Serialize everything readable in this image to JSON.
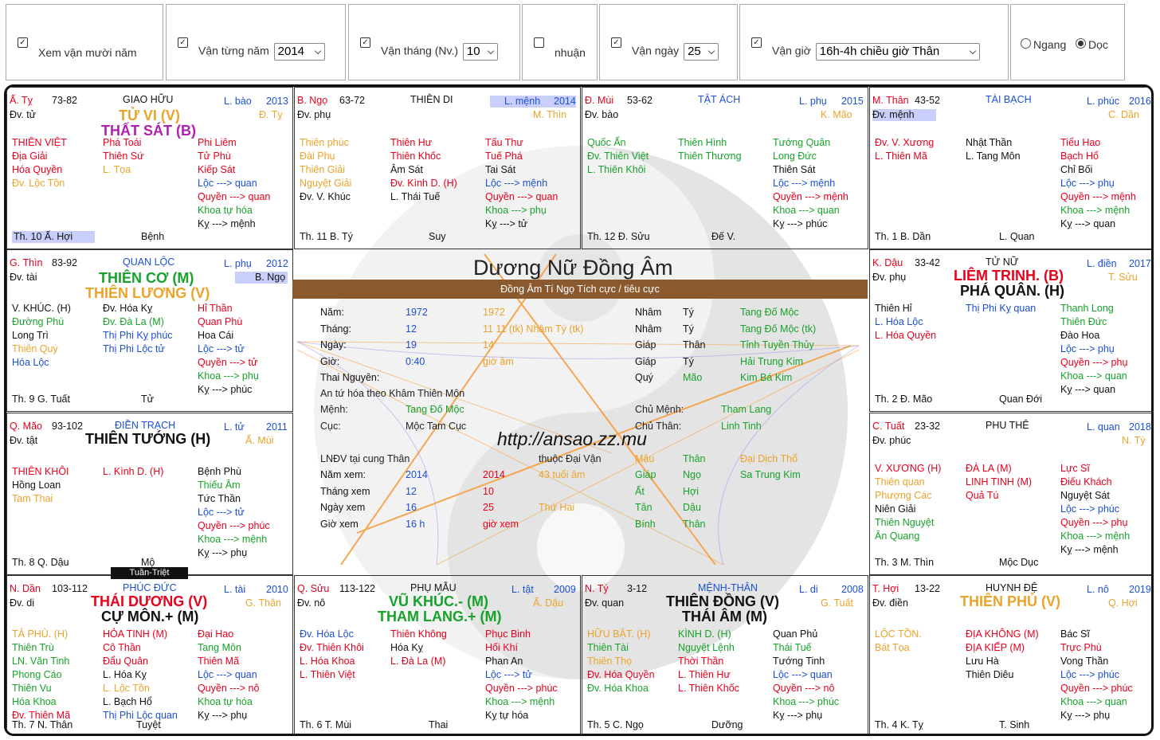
{
  "controls": {
    "c1": {
      "checked": true,
      "label": "Xem vận mười năm"
    },
    "c2": {
      "checked": true,
      "label": "Vận từng năm",
      "value": "2014"
    },
    "c3": {
      "checked": true,
      "label": "Vận tháng (Nv.)",
      "value": "10"
    },
    "c4": {
      "checked": false,
      "label": "nhuận"
    },
    "c5": {
      "checked": true,
      "label": "Vận ngày",
      "value": "25"
    },
    "c6": {
      "checked": true,
      "label": "Vận giờ",
      "value": "16h-4h chiều giờ Thân"
    },
    "radio1": "Ngang",
    "radio2": "Doc"
  },
  "center": {
    "title": "Dương Nữ Đồng Âm",
    "banner": "Đồng Âm Tí Ngọ Tích cực / tiêu cực",
    "url": "http://ansao.zz.mu",
    "rows": [
      [
        "Năm:",
        "1972",
        "1972",
        "",
        "Nhâm",
        "Tý",
        "Tang Đố Mộc"
      ],
      [
        "Tháng:",
        "12",
        "11   11 (tk)  Nhâm  Tý (tk)",
        "",
        "Nhâm",
        "Tý",
        "Tang Đố Mộc (tk)"
      ],
      [
        "Ngày:",
        "19",
        "14",
        "",
        "Giáp",
        "Thân",
        "Tỉnh Tuyền Thủy"
      ],
      [
        "Giờ:",
        "0:40",
        "giờ âm",
        "",
        "Giáp",
        "Tý",
        "Hải Trung Kim"
      ],
      [
        "Thai Nguyên:",
        "",
        "",
        "",
        "Quý",
        "Mão",
        "Kim Bá Kim"
      ]
    ],
    "an_tu": "An tứ hóa theo Khâm Thiên Môn",
    "menh_label": "Mệnh:",
    "menh": "Tang Đố Mộc",
    "chu_menh_label": "Chủ Mệnh:",
    "chu_menh": "Tham Lang",
    "cuc_label": "Cục:",
    "cuc": "Mộc Tam Cục",
    "chu_than_label": "Chủ Thân:",
    "chu_than": "Linh Tinh",
    "lndv": "LNĐV tại cung Thân",
    "thuoc": "thuộc Đại Vận",
    "dv_can": "Mậu",
    "dv_chi": "Thân",
    "dv_nap": "Đại Dịch Thổ",
    "xem": [
      [
        "Năm xem:",
        "2014",
        "2014",
        "43 tuổi âm",
        "Giáp",
        "Ngọ",
        "Sa Trung Kim"
      ],
      [
        "Tháng xem",
        "12",
        "10",
        "",
        "Ất",
        "Hợi",
        ""
      ],
      [
        "Ngày xem",
        "16",
        "25",
        "Thứ Hai",
        "Tân",
        "Dậu",
        ""
      ],
      [
        "Giờ xem",
        "16 h",
        "giờ xem",
        "",
        "Bính",
        "Thân",
        ""
      ]
    ],
    "tuan_triet": "Tuần-Triệt"
  },
  "cells": [
    {
      "id": "ty",
      "pos": [
        0,
        0
      ],
      "tl": "Ấ. Tỵ",
      "age": "73-82",
      "house": "GIAO HỮU",
      "ln": "L. bào",
      "yr": "2013",
      "sub": "Đv. tử",
      "sub2": "Đ. Tỵ",
      "main": [
        [
          "TỬ VI  (V)",
          "olive"
        ],
        [
          "THẤT SÁT  (B)",
          "purple"
        ]
      ],
      "c1": [
        [
          "THIÊN VIỆT",
          "red"
        ],
        [
          "Địa Giải",
          "red"
        ],
        [
          "Hóa Quyền",
          "red"
        ],
        [
          "Đv. Lộc Tồn",
          "olive"
        ]
      ],
      "c2": [
        [
          "Phá Toái",
          "red"
        ],
        [
          "Thiên Sứ",
          "red"
        ],
        [
          "L. Tọa",
          "olive"
        ]
      ],
      "c3": [
        [
          "Phi Liêm",
          "red"
        ],
        [
          "Tử Phù",
          "red"
        ],
        [
          "Kiếp Sát",
          "red"
        ],
        [
          "Lộc ---> quan",
          "blue"
        ],
        [
          "Quyền ---> quan",
          "red"
        ],
        [
          "Khoa tự hóa",
          "green"
        ],
        [
          "Kỵ ---> mệnh",
          "black"
        ]
      ],
      "ft": [
        "Th. 10  Ấ. Hợi",
        "Bệnh"
      ],
      "fthl": true
    },
    {
      "id": "ngo",
      "pos": [
        1,
        0
      ],
      "tl": "B. Ngọ",
      "age": "63-72",
      "house": "THIÊN DI",
      "ln": "L. mệnh",
      "yr": "2014",
      "sub": "Đv. phụ",
      "sub2": "M. Thìn",
      "lnhl": true,
      "main": [],
      "c1": [
        [
          "Thiên phúc",
          "olive"
        ],
        [
          "Đài Phụ",
          "olive"
        ],
        [
          "Thiên Giải",
          "olive"
        ],
        [
          "Nguyệt Giải",
          "olive"
        ],
        [
          "Đv. V. Khúc",
          "black"
        ]
      ],
      "c2": [
        [
          "Thiên Hư",
          "red"
        ],
        [
          "Thiên Khốc",
          "red"
        ],
        [
          "Âm Sát",
          "black"
        ],
        [
          "Đv. Kình D.  (H)",
          "red"
        ],
        [
          "L. Thái Tuế",
          "black"
        ]
      ],
      "c3": [
        [
          "Tấu Thư",
          "red"
        ],
        [
          "Tuế Phá",
          "red"
        ],
        [
          "Tai Sát",
          "black"
        ],
        [
          "Lộc ---> mệnh",
          "blue"
        ],
        [
          "Quyền ---> quan",
          "red"
        ],
        [
          "Khoa ---> phụ",
          "green"
        ],
        [
          "Kỵ ---> tử",
          "black"
        ]
      ],
      "ft": [
        "Th. 11  B. Tý",
        "Suy"
      ]
    },
    {
      "id": "mui",
      "pos": [
        2,
        0
      ],
      "tl": "Đ. Mùi",
      "age": "53-62",
      "house": "TẬT ÁCH",
      "ln": "L. phụ",
      "yr": "2015",
      "sub": "Đv. bào",
      "sub2": "K. Mão",
      "main": [],
      "c1": [
        [
          "Quốc Ấn",
          "green"
        ],
        [
          "Đv. Thiên Việt",
          "green"
        ],
        [
          "L. Thiên Khôi",
          "green"
        ]
      ],
      "c2": [
        [
          "Thiên Hình",
          "green"
        ],
        [
          "Thiên Thương",
          "green"
        ]
      ],
      "c3": [
        [
          "Tướng Quân",
          "green"
        ],
        [
          "Long Đức",
          "green"
        ],
        [
          "Thiên Sát",
          "black"
        ],
        [
          "Lộc ---> mệnh",
          "blue"
        ],
        [
          "Quyền ---> mệnh",
          "red"
        ],
        [
          "Khoa ---> quan",
          "green"
        ],
        [
          "Kỵ ---> phúc",
          "black"
        ]
      ],
      "ft": [
        "Th. 12  Đ. Sửu",
        "Đế V."
      ]
    },
    {
      "id": "than",
      "pos": [
        3,
        0
      ],
      "tl": "M. Thân",
      "age": "43-52",
      "house": "TÀI BẠCH",
      "ln": "L. phúc",
      "yr": "2016",
      "sub": "Đv. mệnh",
      "sub2": "C. Dần",
      "subhl": true,
      "main": [],
      "c1": [
        [
          "Đv. V. Xương",
          "red"
        ],
        [
          "L. Thiên Mã",
          "red"
        ]
      ],
      "c2": [
        [
          "Nhật Thần",
          "black"
        ],
        [
          "L. Tang Môn",
          "black"
        ]
      ],
      "c3": [
        [
          "Tiểu Hao",
          "red"
        ],
        [
          "Bạch Hổ",
          "red"
        ],
        [
          "Chỉ Bối",
          "black"
        ],
        [
          "Lộc ---> phụ",
          "blue"
        ],
        [
          "Quyền ---> mệnh",
          "red"
        ],
        [
          "Khoa ---> mệnh",
          "green"
        ],
        [
          "Kỵ ---> quan",
          "black"
        ]
      ],
      "ft": [
        "Th. 1  B. Dần",
        "L. Quan"
      ]
    },
    {
      "id": "thin",
      "pos": [
        0,
        1
      ],
      "tl": "G. Thìn",
      "age": "83-92",
      "house": "QUAN LỘC",
      "ln": "L. phụ",
      "yr": "2012",
      "sub": "Đv. tài",
      "sub2": "B. Ngọ",
      "sub2hl": true,
      "main": [
        [
          "THIÊN CƠ  (M)",
          "green"
        ],
        [
          "THIÊN LƯƠNG  (V)",
          "olive"
        ]
      ],
      "c1": [
        [
          "V. KHÚC.  (H)",
          "black"
        ],
        [
          "Đường Phù",
          "green"
        ],
        [
          "Long Trì",
          "black"
        ],
        [
          "Thiên Quý",
          "olive"
        ],
        [
          "Hóa Lộc",
          "blue"
        ]
      ],
      "c2": [
        [
          "Đv. Hóa Kỵ",
          "black"
        ],
        [
          "Đv. Đà La  (M)",
          "green"
        ],
        [
          "Thị Phi Kỵ phúc",
          "blue"
        ],
        [
          "Thị Phi Lộc tử",
          "blue"
        ]
      ],
      "c3": [
        [
          "Hỉ Thần",
          "red"
        ],
        [
          "Quan Phù",
          "red"
        ],
        [
          "Hoa Cái",
          "black"
        ],
        [
          "Lộc ---> tử",
          "blue"
        ],
        [
          "Quyền ---> tử",
          "red"
        ],
        [
          "Khoa ---> phụ",
          "green"
        ],
        [
          "Kỵ ---> phúc",
          "black"
        ]
      ],
      "ft": [
        "Th. 9  G. Tuất",
        "Tử"
      ]
    },
    {
      "id": "dau",
      "pos": [
        3,
        1
      ],
      "tl": "K. Dậu",
      "age": "33-42",
      "house": "TỬ NỮ",
      "ln": "L. điền",
      "yr": "2017",
      "sub": "Đv. phụ",
      "sub2": "T. Sửu",
      "main": [
        [
          "LIÊM TRINH.  (B)",
          "red"
        ],
        [
          "PHÁ QUÂN.  (H)",
          "black"
        ]
      ],
      "c1": [
        [
          "Thiên Hỉ",
          "black"
        ],
        [
          "L. Hóa Lộc",
          "blue"
        ],
        [
          "L. Hóa Quyền",
          "red"
        ]
      ],
      "c2": [
        [
          "Thị Phi Kỵ quan",
          "blue"
        ]
      ],
      "c3": [
        [
          "Thanh Long",
          "green"
        ],
        [
          "Thiên Đức",
          "green"
        ],
        [
          "Đào Hoa",
          "black"
        ],
        [
          "Lộc ---> phụ",
          "blue"
        ],
        [
          "Quyền ---> phụ",
          "red"
        ],
        [
          "Khoa ---> quan",
          "green"
        ],
        [
          "Kỵ ---> quan",
          "black"
        ]
      ],
      "ft": [
        "Th. 2  Đ. Mão",
        "Quan Đới"
      ]
    },
    {
      "id": "mao",
      "pos": [
        0,
        2
      ],
      "tl": "Q. Mão",
      "age": "93-102",
      "house": "ĐIỀN TRẠCH",
      "ln": "L. tử",
      "yr": "2011",
      "sub": "Đv. tật",
      "sub2": "Ấ. Mùi",
      "main": [
        [
          "THIÊN TƯỚNG  (H)",
          "black"
        ]
      ],
      "c1": [
        [
          "THIÊN KHÔI",
          "red"
        ],
        [
          "Hồng Loan",
          "black"
        ],
        [
          "Tam Thai",
          "olive"
        ]
      ],
      "c2": [
        [
          "L. Kình D.  (H)",
          "red"
        ]
      ],
      "c3": [
        [
          "Bệnh Phù",
          "black"
        ],
        [
          "Thiếu Âm",
          "green"
        ],
        [
          "Tức Thần",
          "black"
        ],
        [
          "Lộc ---> tử",
          "blue"
        ],
        [
          "Quyền ---> phúc",
          "red"
        ],
        [
          "Khoa ---> mệnh",
          "green"
        ],
        [
          "Kỵ ---> phụ",
          "black"
        ]
      ],
      "ft": [
        "Th. 8  Q. Dậu",
        "Mộ"
      ]
    },
    {
      "id": "tuat",
      "pos": [
        3,
        2
      ],
      "tl": "C. Tuất",
      "age": "23-32",
      "house": "PHU THÊ",
      "ln": "L. quan",
      "yr": "2018",
      "sub": "Đv. phúc",
      "sub2": "N. Tý",
      "main": [],
      "c1": [
        [
          "V. XƯƠNG  (H)",
          "red"
        ],
        [
          "Thiên quan",
          "olive"
        ],
        [
          "Phượng Các",
          "olive"
        ],
        [
          "Niên Giải",
          "black"
        ],
        [
          "Thiên Nguyệt",
          "green"
        ],
        [
          "Ân Quang",
          "green"
        ]
      ],
      "c2": [
        [
          "ĐÀ LA  (M)",
          "red"
        ],
        [
          "LINH TINH  (M)",
          "red"
        ],
        [
          "Quả Tú",
          "red"
        ]
      ],
      "c3": [
        [
          "Lực Sĩ",
          "red"
        ],
        [
          "Điếu Khách",
          "red"
        ],
        [
          "Nguyệt Sát",
          "black"
        ],
        [
          "Lộc ---> phúc",
          "blue"
        ],
        [
          "Quyền ---> phụ",
          "red"
        ],
        [
          "Khoa ---> mệnh",
          "green"
        ],
        [
          "Kỵ ---> mệnh",
          "black"
        ]
      ],
      "ft": [
        "Th. 3  M. Thìn",
        "Mộc Dục"
      ]
    },
    {
      "id": "dan",
      "pos": [
        0,
        3
      ],
      "tl": "N. Dần",
      "age": "103-112",
      "house": "PHÚC ĐỨC",
      "ln": "L. tài",
      "yr": "2010",
      "sub": "Đv. di",
      "sub2": "G. Thân",
      "main": [
        [
          "THÁI DƯƠNG  (V)",
          "red"
        ],
        [
          "CỰ MÔN.+ (M)",
          "black"
        ]
      ],
      "c1": [
        [
          "TẢ PHÙ.  (H)",
          "olive"
        ],
        [
          "Thiên Trù",
          "green"
        ],
        [
          "LN. Văn Tinh",
          "green"
        ],
        [
          "Phong Cáo",
          "green"
        ],
        [
          "Thiên Vu",
          "green"
        ],
        [
          "Hóa Khoa",
          "green"
        ],
        [
          "Đv. Thiên Mã",
          "red"
        ]
      ],
      "c2": [
        [
          "HỎA TINH  (M)",
          "red"
        ],
        [
          "Cô Thần",
          "red"
        ],
        [
          "Đẩu Quân",
          "red"
        ],
        [
          "L. Hóa Kỵ",
          "black"
        ],
        [
          "L. Lộc Tồn",
          "olive"
        ],
        [
          "L. Bạch Hổ",
          "black"
        ],
        [
          "Thị Phi Lộc quan",
          "blue"
        ]
      ],
      "c3": [
        [
          "Đại Hao",
          "red"
        ],
        [
          "Tang Môn",
          "green"
        ],
        [
          "Thiên Mã",
          "red"
        ],
        [
          "Lộc ---> quan",
          "blue"
        ],
        [
          "Quyền ---> nô",
          "red"
        ],
        [
          "Khoa tự hóa",
          "green"
        ],
        [
          "Kỵ ---> phụ",
          "black"
        ]
      ],
      "ft": [
        "Th. 7  N. Thân",
        "Tuyệt"
      ]
    },
    {
      "id": "suu",
      "pos": [
        1,
        3
      ],
      "tl": "Q. Sửu",
      "age": "113-122",
      "house": "PHỤ MẪU",
      "ln": "L. tật",
      "yr": "2009",
      "sub": "Đv. nô",
      "sub2": "Ấ. Dậu",
      "main": [
        [
          "VŨ KHÚC.- (M)",
          "green"
        ],
        [
          "THAM LANG.+ (M)",
          "green"
        ]
      ],
      "c1": [
        [
          "Đv. Hóa Lộc",
          "blue"
        ],
        [
          "Đv. Thiên Khôi",
          "red"
        ],
        [
          "L. Hóa Khoa",
          "red"
        ],
        [
          "L. Thiên Việt",
          "red"
        ]
      ],
      "c2": [
        [
          "Thiên Không",
          "red"
        ],
        [
          "Hóa Kỵ",
          "black"
        ],
        [
          "L. Đà La  (M)",
          "red"
        ]
      ],
      "c3": [
        [
          "Phục Binh",
          "red"
        ],
        [
          "Hối Khí",
          "red"
        ],
        [
          "Phan An",
          "black"
        ],
        [
          "Lộc ---> tử",
          "blue"
        ],
        [
          "Quyền ---> phúc",
          "red"
        ],
        [
          "Khoa ---> mệnh",
          "green"
        ],
        [
          "Kỵ tự hóa",
          "black"
        ]
      ],
      "ft": [
        "Th. 6  T. Mùi",
        "Thai"
      ]
    },
    {
      "id": "ty2",
      "pos": [
        2,
        3
      ],
      "tl": "N. Tý",
      "age": "3-12",
      "house": "MỆNH-THÂN",
      "ln": "L. di",
      "yr": "2008",
      "sub": "Đv. quan",
      "sub2": "G. Tuất",
      "main": [
        [
          "THIÊN ĐỒNG  (V)",
          "black"
        ],
        [
          "THÁI ÂM  (M)",
          "black"
        ]
      ],
      "c1": [
        [
          "HỮU BẬT.  (H)",
          "olive"
        ],
        [
          "Thiên Tài",
          "green"
        ],
        [
          "Thiên Thọ",
          "olive"
        ],
        [
          "Đv. Hóa Quyền",
          "red"
        ],
        [
          "Đv. Hóa Khoa",
          "green"
        ]
      ],
      "c2": [
        [
          "KÌNH D.  (H)",
          "green"
        ],
        [
          "Nguyệt Lệnh",
          "green"
        ],
        [
          "Thời Thần",
          "red"
        ],
        [
          "L. Thiên Hư",
          "red"
        ],
        [
          "L. Thiên Khốc",
          "red"
        ]
      ],
      "c3": [
        [
          "Quan Phủ",
          "black"
        ],
        [
          "Thái Tuế",
          "green"
        ],
        [
          "Tướng Tinh",
          "black"
        ],
        [
          "Lộc ---> quan",
          "blue"
        ],
        [
          "Quyền ---> nô",
          "red"
        ],
        [
          "Khoa ---> phúc",
          "green"
        ],
        [
          "Kỵ ---> phụ",
          "black"
        ]
      ],
      "ft": [
        "Th. 5  C. Ngọ",
        "Dưỡng"
      ]
    },
    {
      "id": "hoi",
      "pos": [
        3,
        3
      ],
      "tl": "T. Hợi",
      "age": "13-22",
      "house": "HUYNH ĐỆ",
      "ln": "L. nô",
      "yr": "2019",
      "sub": "Đv. điền",
      "sub2": "Q. Hợi",
      "main": [
        [
          "THIÊN PHỦ  (V)",
          "olive"
        ]
      ],
      "c1": [
        [
          "LỘC TỒN.",
          "olive"
        ],
        [
          "Bát Tọa",
          "olive"
        ]
      ],
      "c2": [
        [
          "ĐỊA KHÔNG  (M)",
          "red"
        ],
        [
          "ĐỊA KIẾP  (M)",
          "red"
        ],
        [
          "Lưu Hà",
          "black"
        ],
        [
          "Thiên Diêu",
          "black"
        ]
      ],
      "c3": [
        [
          "Bác Sĩ",
          "black"
        ],
        [
          "Trực Phù",
          "red"
        ],
        [
          "Vong Thần",
          "black"
        ],
        [
          "Lộc ---> phúc",
          "blue"
        ],
        [
          "Quyền ---> phúc",
          "red"
        ],
        [
          "Khoa ---> quan",
          "green"
        ],
        [
          "Kỵ ---> phụ",
          "black"
        ]
      ],
      "ft": [
        "Th. 4  K. Tỵ",
        "T. Sinh"
      ]
    }
  ]
}
